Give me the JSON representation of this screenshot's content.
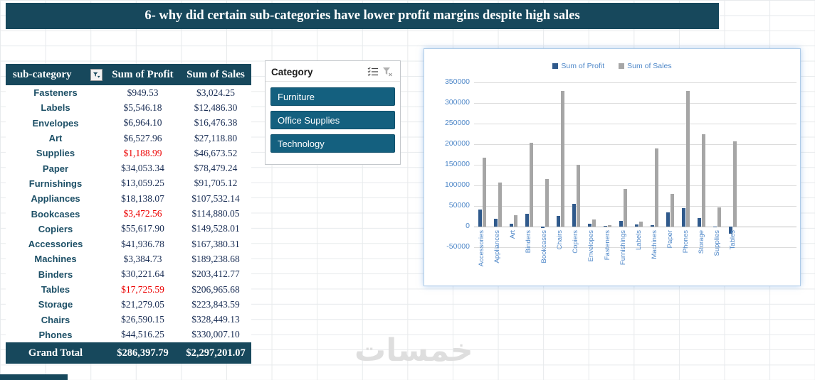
{
  "banner": {
    "title": "6- why did certain sub-categories have lower profit margins despite high sales"
  },
  "pivot_table": {
    "headers": {
      "sub_category": "sub-category",
      "profit": "Sum of Profit",
      "sales": "Sum of Sales"
    },
    "rows": [
      {
        "name": "Fasteners",
        "profit": "$949.53",
        "sales": "$3,024.25",
        "profit_negative": false
      },
      {
        "name": "Labels",
        "profit": "$5,546.18",
        "sales": "$12,486.30",
        "profit_negative": false
      },
      {
        "name": "Envelopes",
        "profit": "$6,964.10",
        "sales": "$16,476.38",
        "profit_negative": false
      },
      {
        "name": "Art",
        "profit": "$6,527.96",
        "sales": "$27,118.80",
        "profit_negative": false
      },
      {
        "name": "Supplies",
        "profit": "$1,188.99",
        "sales": "$46,673.52",
        "profit_negative": true
      },
      {
        "name": "Paper",
        "profit": "$34,053.34",
        "sales": "$78,479.24",
        "profit_negative": false
      },
      {
        "name": "Furnishings",
        "profit": "$13,059.25",
        "sales": "$91,705.12",
        "profit_negative": false
      },
      {
        "name": "Appliances",
        "profit": "$18,138.07",
        "sales": "$107,532.14",
        "profit_negative": false
      },
      {
        "name": "Bookcases",
        "profit": "$3,472.56",
        "sales": "$114,880.05",
        "profit_negative": true
      },
      {
        "name": "Copiers",
        "profit": "$55,617.90",
        "sales": "$149,528.01",
        "profit_negative": false
      },
      {
        "name": "Accessories",
        "profit": "$41,936.78",
        "sales": "$167,380.31",
        "profit_negative": false
      },
      {
        "name": "Machines",
        "profit": "$3,384.73",
        "sales": "$189,238.68",
        "profit_negative": false
      },
      {
        "name": "Binders",
        "profit": "$30,221.64",
        "sales": "$203,412.77",
        "profit_negative": false
      },
      {
        "name": "Tables",
        "profit": "$17,725.59",
        "sales": "$206,965.68",
        "profit_negative": true
      },
      {
        "name": "Storage",
        "profit": "$21,279.05",
        "sales": "$223,843.59",
        "profit_negative": false
      },
      {
        "name": "Chairs",
        "profit": "$26,590.15",
        "sales": "$328,449.13",
        "profit_negative": false
      },
      {
        "name": "Phones",
        "profit": "$44,516.25",
        "sales": "$330,007.10",
        "profit_negative": false
      }
    ],
    "grand_total": {
      "label": "Grand Total",
      "profit": "$286,397.79",
      "sales": "$2,297,201.07"
    }
  },
  "slicer": {
    "title": "Category",
    "items": [
      "Furniture",
      "Office Supplies",
      "Technology"
    ]
  },
  "chart_data": {
    "type": "bar",
    "title": "",
    "categories": [
      "Accessories",
      "Appliances",
      "Art",
      "Binders",
      "Bookcases",
      "Chairs",
      "Copiers",
      "Envelopes",
      "Fasteners",
      "Furnishings",
      "Labels",
      "Machines",
      "Paper",
      "Phones",
      "Storage",
      "Supplies",
      "Tables"
    ],
    "series": [
      {
        "name": "Sum of Profit",
        "color": "#305A8C",
        "values": [
          41936.78,
          18138.07,
          6527.96,
          30221.64,
          -3472.56,
          26590.15,
          55617.9,
          6964.1,
          949.53,
          13059.25,
          5546.18,
          3384.73,
          34053.34,
          44516.25,
          21279.05,
          -1188.99,
          -17725.59
        ]
      },
      {
        "name": "Sum of Sales",
        "color": "#A6A6A6",
        "values": [
          167380.31,
          107532.14,
          27118.8,
          203412.77,
          114880.05,
          328449.13,
          149528.01,
          16476.38,
          3024.25,
          91705.12,
          12486.3,
          189238.68,
          78479.24,
          330007.1,
          223843.59,
          46673.52,
          206965.68
        ]
      }
    ],
    "ylim": [
      -50000,
      350000
    ],
    "yticks": [
      350000,
      300000,
      250000,
      200000,
      150000,
      100000,
      50000,
      0,
      -50000
    ],
    "legend_position": "top",
    "grid": true,
    "xlabel": "",
    "ylabel": ""
  },
  "icons": {
    "table_header_filter": "filter-dropdown-icon",
    "slicer_multiselect": "multiselect-icon",
    "slicer_clear_filter": "clear-filter-icon"
  },
  "colors": {
    "header_bg": "#17485C",
    "slicer_button_bg": "#14607F",
    "negative_value": "#EC0000",
    "profit_series": "#305A8C",
    "sales_series": "#A6A6A6",
    "axis_label": "#4E87C8"
  },
  "watermark": {
    "text": "خمسات"
  }
}
